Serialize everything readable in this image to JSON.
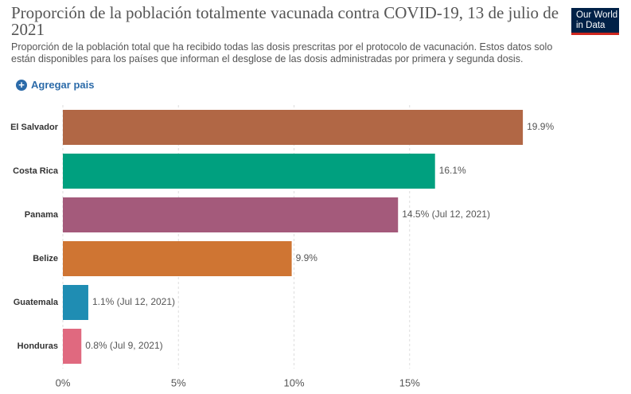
{
  "chart_data": {
    "type": "bar",
    "orientation": "horizontal",
    "title": "Proporción de la población totalmente vacunada contra COVID-19, 13 de julio de 2021",
    "subtitle": "Proporción de la población total que ha recibido todas las dosis prescritas por el protocolo de vacunación. Estos datos solo están disponibles para los países que informan el desglose de las dosis administradas por primera y segunda dosis.",
    "logo": [
      "Our World",
      "in Data"
    ],
    "add_button": "Agregar pais",
    "categories": [
      "El Salvador",
      "Costa Rica",
      "Panama",
      "Belize",
      "Guatemala",
      "Honduras"
    ],
    "values": [
      19.9,
      16.1,
      14.5,
      9.9,
      1.1,
      0.8
    ],
    "value_labels": [
      "19.9%",
      "16.1%",
      "14.5% (Jul 12, 2021)",
      "9.9%",
      "1.1% (Jul 12, 2021)",
      "0.8% (Jul 9, 2021)"
    ],
    "colors": [
      "#b16745",
      "#00a07f",
      "#a45a7b",
      "#cf7533",
      "#1f8db3",
      "#e0697f"
    ],
    "xlim": [
      0,
      20
    ],
    "xticks": [
      {
        "value": 0,
        "label": "0%"
      },
      {
        "value": 5,
        "label": "5%"
      },
      {
        "value": 10,
        "label": "10%"
      },
      {
        "value": 15,
        "label": "15%"
      }
    ],
    "grid": true
  }
}
